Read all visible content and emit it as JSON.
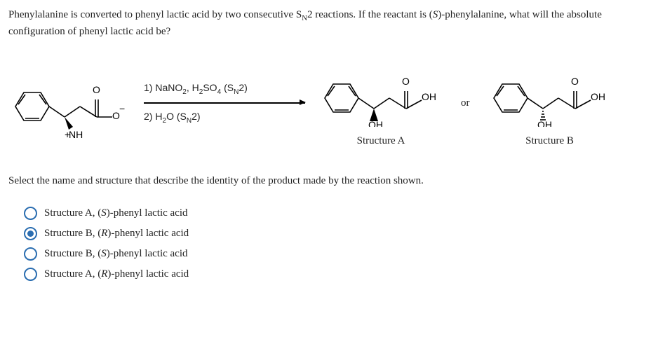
{
  "question": "Phenylalanine is converted to phenyl lactic acid by two consecutive S<sub>N</sub>2 reactions. If the reactant is (<i>S</i>)-phenylalanine, what will the absolute configuration of phenyl lactic acid be?",
  "reagents": {
    "step1": "1) NaNO<sub>2</sub>, H<sub>2</sub>SO<sub>4</sub> (S<sub>N</sub>2)",
    "step2": "2) H<sub>2</sub>O (S<sub>N</sub>2)"
  },
  "labels": {
    "or": "or",
    "structA": "Structure A",
    "structB": "Structure B",
    "nh3": "NH<sub>3</sub>",
    "oh": "OH",
    "ominus": "O",
    "plus": "+"
  },
  "prompt": "Select the name and structure that describe the identity of the product made by the reaction shown.",
  "options": [
    {
      "label": "Structure A, (<i>S</i>)-phenyl lactic acid",
      "selected": false
    },
    {
      "label": "Structure B, (<i>R</i>)-phenyl lactic acid",
      "selected": true
    },
    {
      "label": "Structure B, (<i>S</i>)-phenyl lactic acid",
      "selected": false
    },
    {
      "label": "Structure A, (<i>R</i>)-phenyl lactic acid",
      "selected": false
    }
  ],
  "colors": {
    "radio_border": "#2a6db0",
    "radio_fill": "#2a6db0",
    "text": "#222222",
    "bg": "#ffffff"
  }
}
